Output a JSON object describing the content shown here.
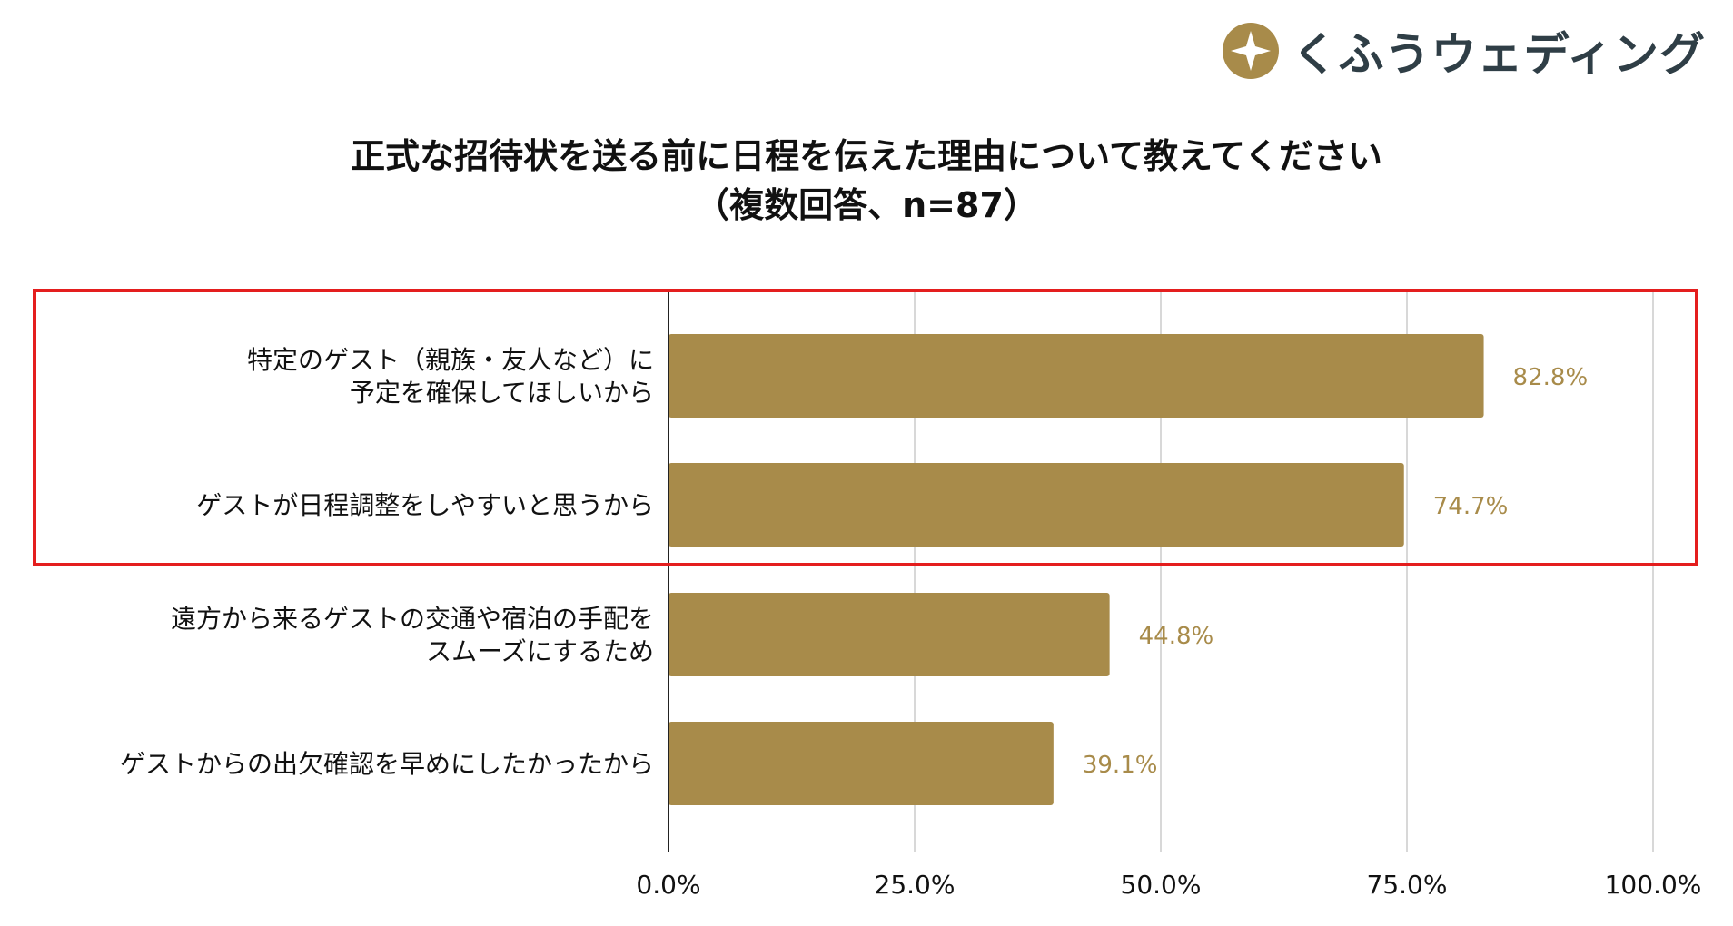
{
  "logo": {
    "text": "くふうウェディング",
    "mark_color": "#a88b4a"
  },
  "colors": {
    "bar": "#a88b4a",
    "value_label": "#a88b4a",
    "highlight": "#e41e1e",
    "grid": "#cccccc",
    "axis": "#222222"
  },
  "chart_data": {
    "type": "bar",
    "orientation": "horizontal",
    "title": "正式な招待状を送る前に日程を伝えた理由について教えてください",
    "subtitle": "（複数回答、n=87）",
    "categories": [
      [
        "特定のゲスト（親族・友人など）に",
        "予定を確保してほしいから"
      ],
      [
        "ゲストが日程調整をしやすいと思うから"
      ],
      [
        "遠方から来るゲストの交通や宿泊の手配を",
        "スムーズにするため"
      ],
      [
        "ゲストからの出欠確認を早めにしたかったから"
      ]
    ],
    "values": [
      82.8,
      74.7,
      44.8,
      39.1
    ],
    "value_labels": [
      "82.8%",
      "74.7%",
      "44.8%",
      "39.1%"
    ],
    "xlim": [
      0,
      100
    ],
    "ticks": [
      0,
      25,
      50,
      75,
      100
    ],
    "tick_labels": [
      "0.0%",
      "25.0%",
      "50.0%",
      "75.0%",
      "100.0%"
    ],
    "grid": true,
    "highlighted_categories": [
      0,
      1
    ]
  }
}
